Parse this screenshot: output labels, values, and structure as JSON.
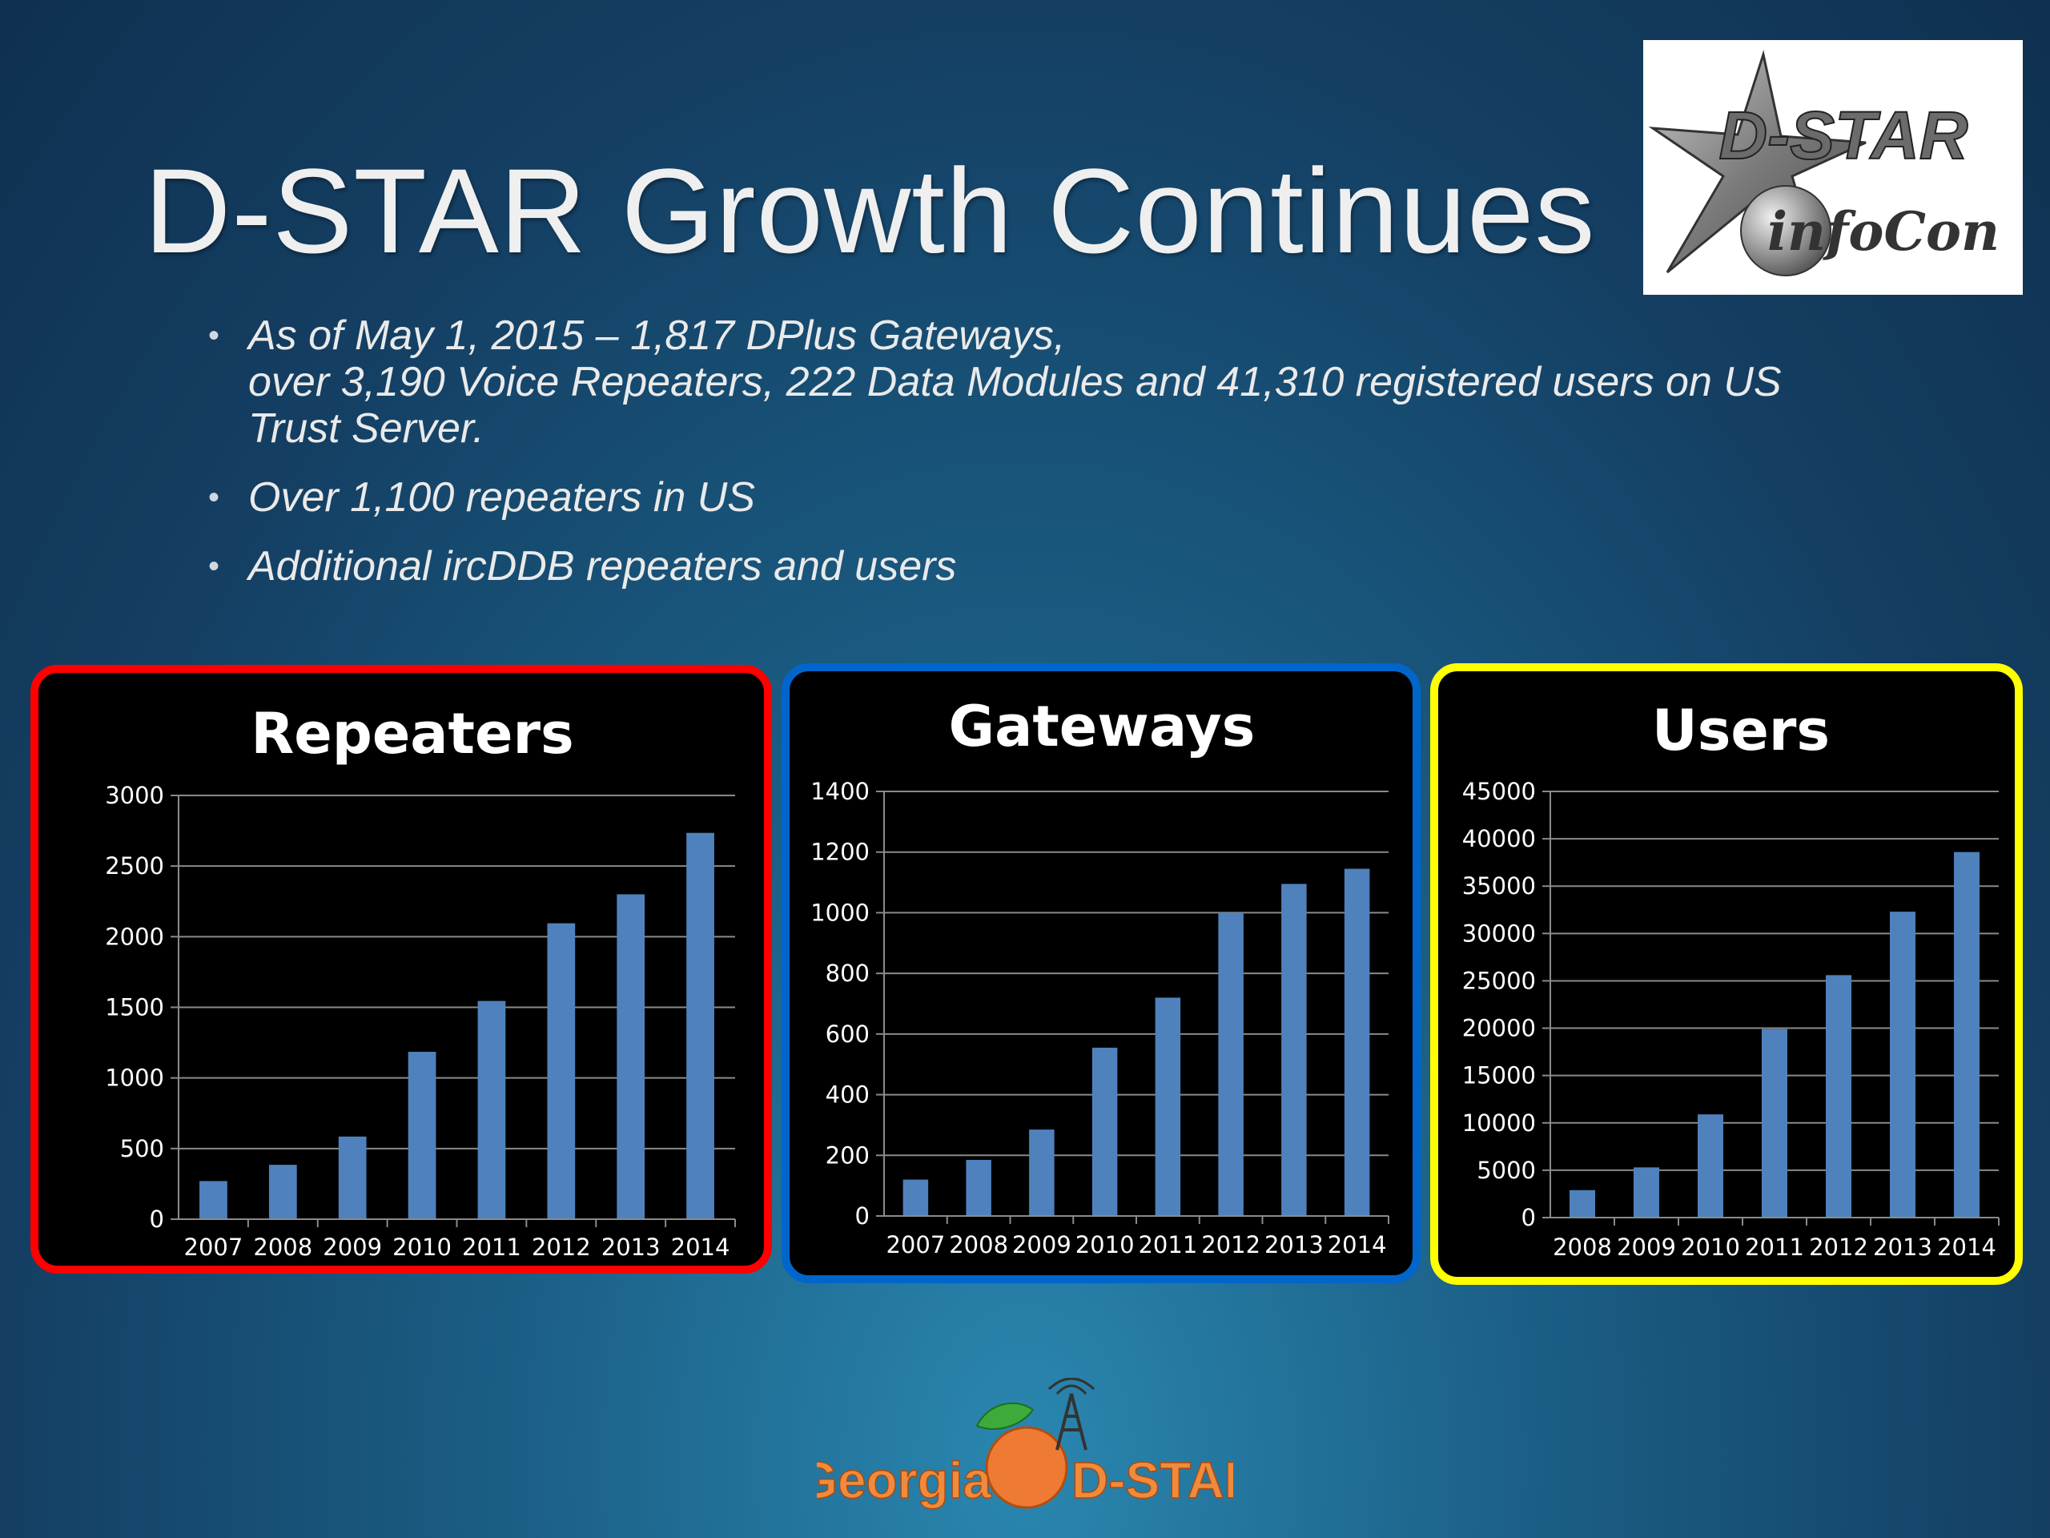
{
  "slide": {
    "title": "D-STAR Growth Continues",
    "bullets": [
      [
        "As of May 1, 2015 – 1,817 DPlus Gateways,",
        "over 3,190 Voice Repeaters, 222 Data Modules and 41,310 registered users on US",
        "Trust Server."
      ],
      [
        "Over 1,100 repeaters in US"
      ],
      [
        "Additional ircDDB repeaters and users"
      ]
    ]
  },
  "logo": {
    "line1": "D-STAR",
    "line2": "infoCon"
  },
  "footer": {
    "left": "Georgia",
    "right": "D-STAR"
  },
  "colors": {
    "bar": "#4f81bd",
    "repeaters_border": "#ff0000",
    "gateways_border": "#0066cc",
    "users_border": "#ffff00",
    "footer_text": "#f08a3c"
  },
  "chart_data": [
    {
      "type": "bar",
      "title": "Repeaters",
      "categories": [
        "2007",
        "2008",
        "2009",
        "2010",
        "2011",
        "2012",
        "2013",
        "2014"
      ],
      "values": [
        270,
        385,
        585,
        1185,
        1545,
        2095,
        2300,
        2735
      ],
      "ylim": [
        0,
        3000
      ],
      "yticks": [
        0,
        500,
        1000,
        1500,
        2000,
        2500,
        3000
      ],
      "grid": true
    },
    {
      "type": "bar",
      "title": "Gateways",
      "categories": [
        "2007",
        "2008",
        "2009",
        "2010",
        "2011",
        "2012",
        "2013",
        "2014"
      ],
      "values": [
        120,
        185,
        285,
        555,
        720,
        1000,
        1095,
        1145
      ],
      "ylim": [
        0,
        1400
      ],
      "yticks": [
        0,
        200,
        400,
        600,
        800,
        1000,
        1200,
        1400
      ],
      "grid": true
    },
    {
      "type": "bar",
      "title": "Users",
      "categories": [
        "2008",
        "2009",
        "2010",
        "2011",
        "2012",
        "2013",
        "2014"
      ],
      "values": [
        2900,
        5300,
        10900,
        19900,
        25600,
        32300,
        38600
      ],
      "ylim": [
        0,
        45000
      ],
      "yticks": [
        0,
        5000,
        10000,
        15000,
        20000,
        25000,
        30000,
        35000,
        40000,
        45000
      ],
      "grid": true
    }
  ]
}
